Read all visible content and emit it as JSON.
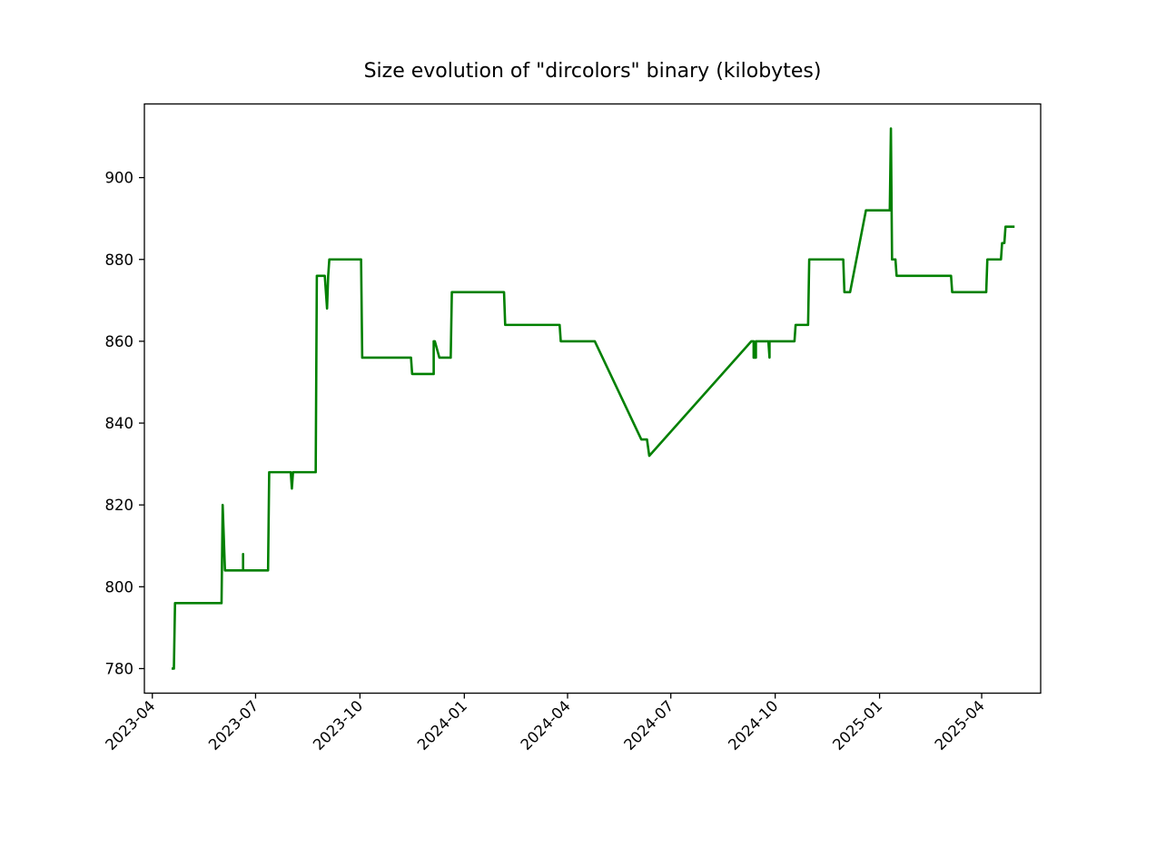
{
  "chart_data": {
    "type": "line",
    "title": "Size evolution of \"dircolors\" binary (kilobytes)",
    "xlabel": "",
    "ylabel": "",
    "x_axis_type": "date",
    "xlim": [
      "2023-03-25",
      "2025-05-23"
    ],
    "ylim": [
      774,
      918
    ],
    "grid": false,
    "legend": "none",
    "line_color": "#008000",
    "x_ticks": [
      "2023-04",
      "2023-07",
      "2023-10",
      "2024-01",
      "2024-04",
      "2024-07",
      "2024-10",
      "2025-01",
      "2025-04"
    ],
    "y_ticks": [
      780,
      800,
      820,
      840,
      860,
      880,
      900
    ],
    "series": [
      {
        "x": [
          "2023-04-18",
          "2023-04-20",
          "2023-04-21",
          "2023-05-01",
          "2023-06-01",
          "2023-06-02",
          "2023-06-04",
          "2023-06-05",
          "2023-06-20",
          "2023-06-20",
          "2023-06-20",
          "2023-07-12",
          "2023-07-13",
          "2023-08-01",
          "2023-08-02",
          "2023-08-03",
          "2023-08-23",
          "2023-08-24",
          "2023-08-31",
          "2023-09-02",
          "2023-09-03",
          "2023-09-04",
          "2023-10-02",
          "2023-10-03",
          "2023-11-15",
          "2023-11-16",
          "2023-12-05",
          "2023-12-05",
          "2023-12-06",
          "2023-12-10",
          "2023-12-11",
          "2023-12-20",
          "2023-12-21",
          "2024-02-05",
          "2024-02-06",
          "2024-03-25",
          "2024-03-26",
          "2024-04-25",
          "2024-06-05",
          "2024-06-10",
          "2024-06-12",
          "2024-09-10",
          "2024-09-12",
          "2024-09-12",
          "2024-09-14",
          "2024-09-14",
          "2024-09-25",
          "2024-09-26",
          "2024-09-26",
          "2024-10-18",
          "2024-10-19",
          "2024-10-30",
          "2024-10-31",
          "2024-11-30",
          "2024-12-01",
          "2024-12-06",
          "2024-12-20",
          "2025-01-10",
          "2025-01-11",
          "2025-01-12",
          "2025-01-15",
          "2025-01-16",
          "2025-03-05",
          "2025-03-06",
          "2025-04-05",
          "2025-04-06",
          "2025-04-18",
          "2025-04-19",
          "2025-04-21",
          "2025-04-22",
          "2025-04-30"
        ],
        "y": [
          780,
          780,
          796,
          796,
          796,
          820,
          804,
          804,
          804,
          808,
          804,
          804,
          828,
          828,
          824,
          828,
          828,
          876,
          876,
          868,
          876,
          880,
          880,
          856,
          856,
          852,
          852,
          860,
          860,
          856,
          856,
          856,
          872,
          872,
          864,
          864,
          860,
          860,
          836,
          836,
          832,
          860,
          860,
          856,
          856,
          860,
          860,
          856,
          860,
          860,
          864,
          864,
          880,
          880,
          872,
          872,
          892,
          892,
          912,
          880,
          880,
          876,
          876,
          872,
          872,
          880,
          880,
          884,
          884,
          888,
          888
        ]
      }
    ]
  }
}
